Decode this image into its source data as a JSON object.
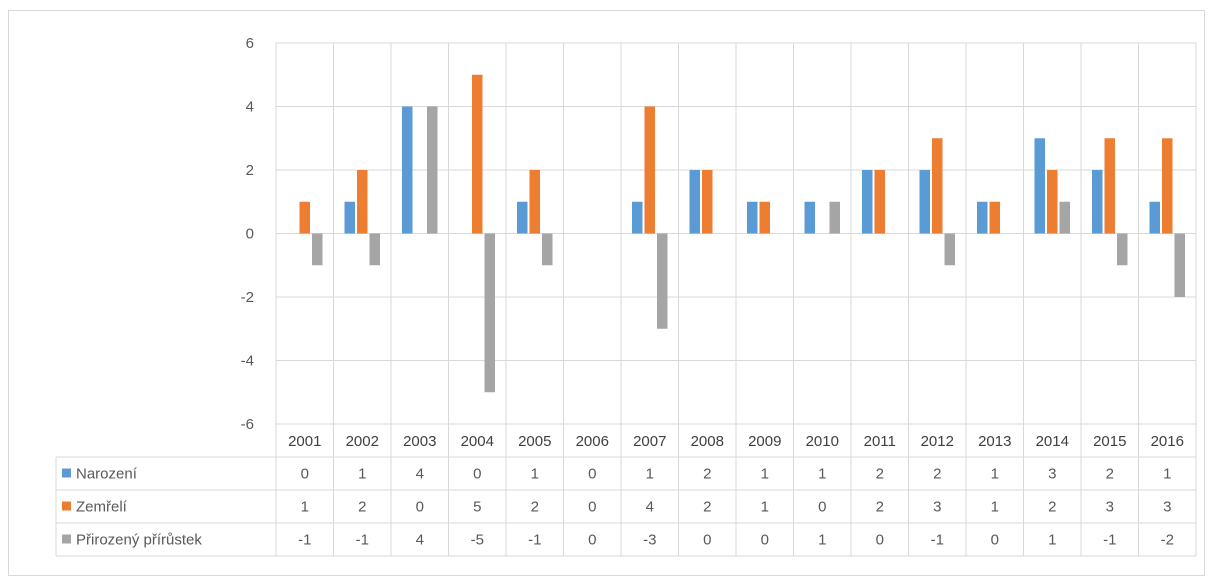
{
  "chart_data": {
    "type": "bar",
    "categories": [
      "2001",
      "2002",
      "2003",
      "2004",
      "2005",
      "2006",
      "2007",
      "2008",
      "2009",
      "2010",
      "2011",
      "2012",
      "2013",
      "2014",
      "2015",
      "2016"
    ],
    "series": [
      {
        "name": "Narození",
        "color": "#5b9bd5",
        "values": [
          0,
          1,
          4,
          0,
          1,
          0,
          1,
          2,
          1,
          1,
          2,
          2,
          1,
          3,
          2,
          1
        ]
      },
      {
        "name": "Zemřelí",
        "color": "#ed7d31",
        "values": [
          1,
          2,
          0,
          5,
          2,
          0,
          4,
          2,
          1,
          0,
          2,
          3,
          1,
          2,
          3,
          3
        ]
      },
      {
        "name": "Přirozený přírůstek",
        "color": "#a5a5a5",
        "values": [
          -1,
          -1,
          4,
          -5,
          -1,
          0,
          -3,
          0,
          0,
          1,
          0,
          -1,
          0,
          1,
          -1,
          -2
        ]
      }
    ],
    "ylim": [
      -6,
      6
    ],
    "yticks": [
      6,
      4,
      2,
      0,
      -2,
      -4,
      -6
    ],
    "grid": true,
    "legend": "data-table",
    "title": "",
    "xlabel": "",
    "ylabel": ""
  }
}
